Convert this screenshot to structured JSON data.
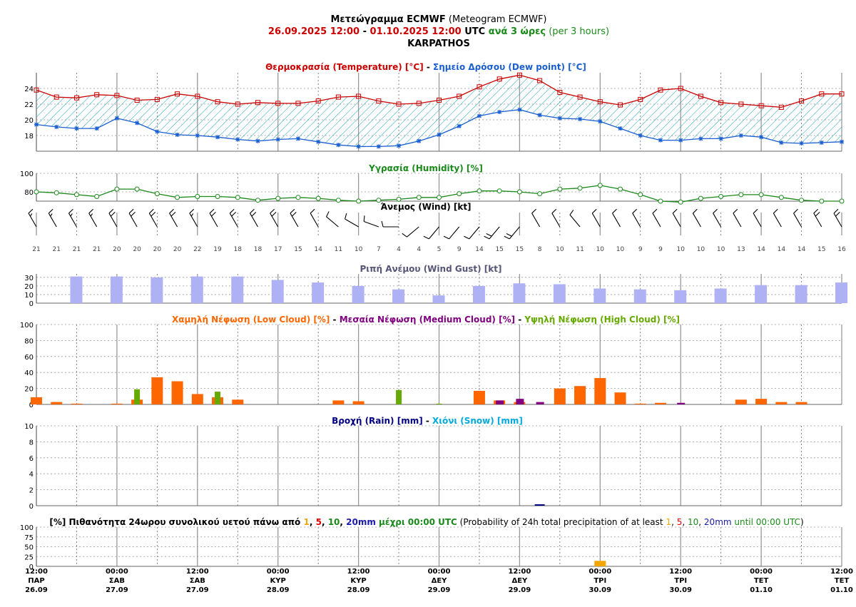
{
  "header": {
    "title_bold": "Μετεώγραμμα ECMWF",
    "title_plain": " (Meteogram ECMWF)",
    "range_start": "26.09.2025 12:00",
    "range_sep": " - ",
    "range_end": "01.10.2025 12:00",
    "range_utc": " UTC ",
    "step_gr": "ανά 3 ώρες",
    "step_en": " (per 3 hours)",
    "location": "KARPATHOS"
  },
  "colors": {
    "temperature": "#cc0000",
    "dewpoint": "#1a5fd1",
    "humidity": "#1a8a1a",
    "gust": "#aeb2f5",
    "low_cloud": "#ff6600",
    "medium_cloud": "#800080",
    "high_cloud": "#66aa00",
    "rain": "#000080",
    "snow": "#00aadd",
    "hatch": "#1aa0b8",
    "prob_1": "#f5a500",
    "prob_5": "#dd0000",
    "prob_10": "#1a8a1a",
    "prob_20": "#1a1aaa"
  },
  "panels": {
    "temp": {
      "t1": "Θερμοκρασία (Temperature) [°C]",
      "sep": " - ",
      "t2": "Σημείο Δρόσου (Dew point) [°C]"
    },
    "humidity": {
      "t1": "Υγρασία (Humidity) [%]"
    },
    "wind": {
      "t1": "Άνεμος (Wind) [kt]"
    },
    "gust": {
      "t1": "Ριπή Ανέμου (Wind Gust) [kt]"
    },
    "cloud": {
      "t1": "Χαμηλή Νέφωση (Low Cloud) [%]",
      "s1": " - ",
      "t2": "Μεσαία Νέφωση (Medium Cloud) [%]",
      "s2": " - ",
      "t3": "Υψηλή Νέφωση (High Cloud) [%]"
    },
    "rain": {
      "t1": "Βροχή (Rain) [mm]",
      "sep": " - ",
      "t2": "Χιόνι (Snow) [mm]"
    },
    "prob": {
      "pre": "[%] Πιθανότητα 24ωρου συνολικού υετού πάνω από ",
      "v1": "1",
      "c1": ", ",
      "v5": "5",
      "c2": ", ",
      "v10": "10",
      "c3": ", ",
      "v20": "20mm",
      "mid": " μέχρι 00:00 UTC",
      "en_pre": " (Probability of 24h total precipitation of at least ",
      "e1": "1",
      "ec1": ", ",
      "e5": "5",
      "ec2": ", ",
      "e10": "10",
      "ec3": ", ",
      "e20": "20mm",
      "en_mid": " until 00:00 UTC",
      "en_end": ")"
    }
  },
  "chart_data": [
    {
      "type": "line",
      "title": "Θερμοκρασία (Temperature) [°C] - Σημείο Δρόσου (Dew point) [°C]",
      "x": [
        "26.09 12:00",
        "26.09 15:00",
        "26.09 18:00",
        "26.09 21:00",
        "27.09 00:00",
        "27.09 03:00",
        "27.09 06:00",
        "27.09 09:00",
        "27.09 12:00",
        "27.09 15:00",
        "27.09 18:00",
        "27.09 21:00",
        "28.09 00:00",
        "28.09 03:00",
        "28.09 06:00",
        "28.09 09:00",
        "28.09 12:00",
        "28.09 15:00",
        "28.09 18:00",
        "28.09 21:00",
        "29.09 00:00",
        "29.09 03:00",
        "29.09 06:00",
        "29.09 09:00",
        "29.09 12:00",
        "29.09 15:00",
        "29.09 18:00",
        "29.09 21:00",
        "30.09 00:00",
        "30.09 03:00",
        "30.09 06:00",
        "30.09 09:00",
        "30.09 12:00",
        "30.09 15:00",
        "30.09 18:00",
        "30.09 21:00",
        "01.10 00:00",
        "01.10 03:00",
        "01.10 06:00",
        "01.10 09:00",
        "01.10 12:00"
      ],
      "series": [
        {
          "name": "Θερμοκρασία (Temperature) [°C]",
          "values": [
            23.8,
            22.9,
            22.8,
            23.2,
            23.1,
            22.5,
            22.6,
            23.3,
            23.0,
            22.3,
            22.0,
            22.2,
            22.1,
            22.1,
            22.4,
            22.9,
            23.0,
            22.4,
            22.0,
            22.1,
            22.5,
            23.0,
            24.2,
            25.2,
            25.7,
            25.0,
            23.5,
            22.9,
            22.3,
            21.9,
            22.6,
            23.8,
            24.0,
            23.0,
            22.2,
            22.0,
            21.8,
            21.6,
            22.4,
            23.3,
            23.3
          ]
        },
        {
          "name": "Σημείο Δρόσου (Dew point) [°C]",
          "values": [
            19.4,
            19.1,
            18.9,
            18.9,
            20.2,
            19.6,
            18.5,
            18.1,
            18.0,
            17.8,
            17.5,
            17.3,
            17.5,
            17.6,
            17.2,
            16.8,
            16.6,
            16.6,
            16.7,
            17.3,
            18.1,
            19.2,
            20.5,
            21.0,
            21.3,
            20.6,
            20.2,
            20.1,
            19.8,
            18.9,
            18.0,
            17.4,
            17.4,
            17.6,
            17.6,
            18.0,
            17.8,
            17.1,
            17.0,
            17.1,
            17.2
          ]
        }
      ],
      "yticks": [
        18,
        20,
        22,
        24
      ],
      "ylim": [
        16.0,
        26.0
      ]
    },
    {
      "type": "line",
      "title": "Υγρασία (Humidity) [%]",
      "series": [
        {
          "name": "Υγρασία (Humidity) [%]",
          "values": [
            80,
            79,
            77,
            75,
            83,
            83,
            78,
            74,
            75,
            75,
            74,
            71,
            73,
            74,
            73,
            71,
            70,
            71,
            72,
            74,
            74,
            78,
            81,
            81,
            80,
            78,
            83,
            84,
            87,
            83,
            77,
            70,
            69,
            73,
            75,
            77,
            77,
            74,
            71,
            70,
            70
          ]
        }
      ],
      "yticks": [
        80,
        100
      ],
      "ylim": [
        70,
        100
      ]
    },
    {
      "type": "wind_barbs",
      "title": "Άνεμος (Wind) [kt]",
      "speeds": [
        21,
        21,
        21,
        21,
        20,
        20,
        20,
        20,
        22,
        19,
        18,
        18,
        17,
        15,
        14,
        11,
        10,
        7,
        4,
        4,
        5,
        9,
        14,
        15,
        15,
        8,
        10,
        11,
        10,
        10,
        9,
        9,
        10,
        10,
        10,
        13,
        14,
        14,
        14,
        15,
        16
      ],
      "direction_deg": [
        330,
        330,
        330,
        330,
        330,
        330,
        330,
        330,
        330,
        330,
        330,
        330,
        330,
        330,
        330,
        310,
        300,
        290,
        270,
        230,
        220,
        220,
        220,
        220,
        220,
        330,
        330,
        320,
        330,
        330,
        330,
        330,
        330,
        330,
        330,
        330,
        330,
        330,
        330,
        330,
        330
      ]
    },
    {
      "type": "bar",
      "title": "Ριπή Ανέμου (Wind Gust) [kt]",
      "x": [
        "26.09 18:00",
        "27.09 00:00",
        "27.09 06:00",
        "27.09 12:00",
        "27.09 18:00",
        "28.09 00:00",
        "28.09 06:00",
        "28.09 12:00",
        "28.09 18:00",
        "29.09 00:00",
        "29.09 06:00",
        "29.09 12:00",
        "29.09 18:00",
        "30.09 00:00",
        "30.09 06:00",
        "30.09 12:00",
        "30.09 18:00",
        "01.10 00:00",
        "01.10 06:00",
        "01.10 12:00"
      ],
      "values": [
        31,
        31,
        30,
        31,
        31,
        27,
        24,
        20,
        16,
        9,
        20,
        23,
        22,
        17,
        16,
        15,
        17,
        21,
        21,
        24
      ],
      "yticks": [
        0,
        10,
        20,
        30
      ],
      "ylim": [
        0,
        34
      ]
    },
    {
      "type": "bar",
      "title": "Χαμηλή Νέφωση (Low Cloud) [%] - Μεσαία Νέφωση (Medium Cloud) [%] - Υψηλή Νέφωση (High Cloud) [%]",
      "series": [
        {
          "name": "Χαμηλή Νέφωση (Low Cloud) [%]",
          "values": [
            9,
            3,
            1,
            0,
            1,
            6,
            34,
            29,
            13,
            9,
            6,
            0,
            0,
            0,
            0,
            5,
            4,
            0,
            0,
            0,
            0,
            0,
            17,
            5,
            3,
            0,
            20,
            23,
            33,
            15,
            1,
            2,
            0,
            0,
            0,
            6,
            7,
            3,
            3,
            0,
            0
          ]
        },
        {
          "name": "Μεσαία Νέφωση (Medium Cloud) [%]",
          "values": [
            0,
            0,
            0,
            0,
            0,
            0,
            0,
            0,
            0,
            0,
            0,
            0,
            0,
            0,
            0,
            0,
            0,
            0,
            0,
            0,
            0,
            0,
            0,
            5,
            7,
            3,
            0,
            0,
            0,
            0,
            0,
            0,
            2,
            0,
            0,
            0,
            0,
            0,
            0,
            0,
            0
          ]
        },
        {
          "name": "Υψηλή Νέφωση (High Cloud) [%]",
          "values": [
            0,
            0,
            0,
            0,
            0,
            19,
            0,
            0,
            0,
            16,
            0,
            0,
            0,
            0,
            0,
            0,
            0,
            0,
            18,
            0,
            1,
            0,
            0,
            0,
            0,
            0,
            0,
            0,
            0,
            0,
            0,
            0,
            0,
            0,
            0,
            0,
            0,
            0,
            0,
            0,
            0
          ]
        }
      ],
      "yticks": [
        0,
        20,
        40,
        60,
        80,
        100
      ],
      "ylim": [
        0,
        100
      ]
    },
    {
      "type": "bar",
      "title": "Βροχή (Rain) [mm] - Χιόνι (Snow) [mm]",
      "series": [
        {
          "name": "Βροχή (Rain) [mm]",
          "values": [
            0,
            0,
            0,
            0,
            0,
            0,
            0,
            0,
            0,
            0,
            0,
            0,
            0,
            0,
            0,
            0,
            0,
            0,
            0,
            0,
            0,
            0,
            0,
            0,
            0,
            0.1,
            0,
            0,
            0,
            0,
            0,
            0,
            0,
            0,
            0,
            0,
            0,
            0,
            0,
            0,
            0
          ]
        },
        {
          "name": "Χιόνι (Snow) [mm]",
          "values": [
            0,
            0,
            0,
            0,
            0,
            0,
            0,
            0,
            0,
            0,
            0,
            0,
            0,
            0,
            0,
            0,
            0,
            0,
            0,
            0,
            0,
            0,
            0,
            0,
            0,
            0,
            0,
            0,
            0,
            0,
            0,
            0,
            0,
            0,
            0,
            0,
            0,
            0,
            0,
            0,
            0
          ]
        }
      ],
      "yticks": [
        0,
        2,
        4,
        6,
        8,
        10
      ],
      "ylim": [
        0,
        10
      ]
    },
    {
      "type": "bar",
      "title": "[%] Πιθανότητα 24ωρου συνολικού υετού πάνω από 1, 5, 10, 20mm μέχρι 00:00 UTC",
      "x": [
        "27.09 00:00",
        "28.09 00:00",
        "29.09 00:00",
        "30.09 00:00",
        "01.10 00:00"
      ],
      "series": [
        {
          "name": "1",
          "values": [
            0,
            0,
            0,
            14,
            0
          ]
        },
        {
          "name": "5",
          "values": [
            0,
            0,
            0,
            0,
            0
          ]
        },
        {
          "name": "10",
          "values": [
            0,
            0,
            0,
            0,
            0
          ]
        },
        {
          "name": "20mm",
          "values": [
            0,
            0,
            0,
            0,
            0
          ]
        }
      ],
      "yticks": [
        0,
        25,
        50,
        75,
        100
      ],
      "ylim": [
        0,
        100
      ]
    }
  ],
  "x_axis": {
    "labels": [
      {
        "time": "12:00",
        "day": "ΠΑΡ",
        "date": "26.09"
      },
      {
        "time": "00:00",
        "day": "ΣΑΒ",
        "date": "27.09"
      },
      {
        "time": "12:00",
        "day": "ΣΑΒ",
        "date": "27.09"
      },
      {
        "time": "00:00",
        "day": "ΚΥΡ",
        "date": "28.09"
      },
      {
        "time": "12:00",
        "day": "ΚΥΡ",
        "date": "28.09"
      },
      {
        "time": "00:00",
        "day": "ΔΕΥ",
        "date": "29.09"
      },
      {
        "time": "12:00",
        "day": "ΔΕΥ",
        "date": "29.09"
      },
      {
        "time": "00:00",
        "day": "ΤΡΙ",
        "date": "30.09"
      },
      {
        "time": "12:00",
        "day": "ΤΡΙ",
        "date": "30.09"
      },
      {
        "time": "00:00",
        "day": "ΤΕΤ",
        "date": "01.10"
      },
      {
        "time": "12:00",
        "day": "ΤΕΤ",
        "date": "01.10"
      }
    ]
  }
}
